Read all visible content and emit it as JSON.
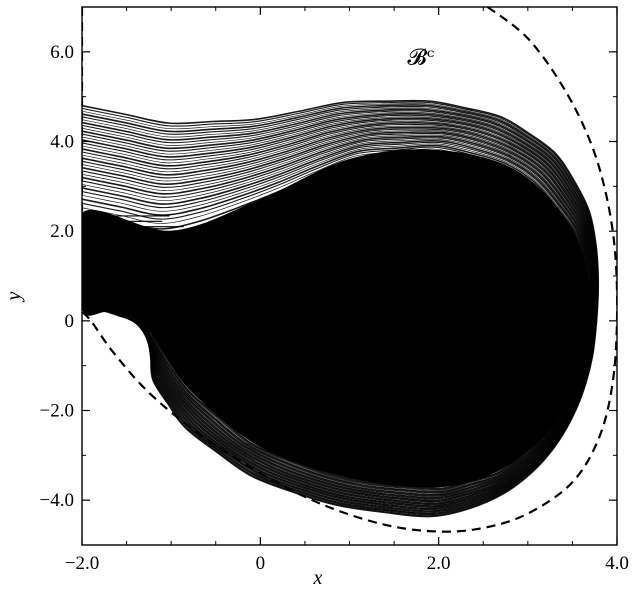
{
  "chart_data": {
    "type": "scatter",
    "title": "",
    "xlabel": "x",
    "ylabel": "y",
    "xlim": [
      -2.0,
      4.0
    ],
    "ylim": [
      -5.0,
      7.0
    ],
    "x_ticks": [
      -2.0,
      0,
      2.0,
      4.0
    ],
    "x_tick_labels": [
      "−2.0",
      "0",
      "2.0",
      "4.0"
    ],
    "y_ticks": [
      -4.0,
      -2.0,
      0,
      2.0,
      4.0,
      6.0
    ],
    "y_tick_labels": [
      "−4.0",
      "−2.0",
      "0",
      "2.0",
      "4.0",
      "6.0"
    ],
    "minor_ticks": true,
    "grid": false,
    "annotations": [
      {
        "text": "𝓑ᶜ",
        "x": 1.8,
        "y": 5.9
      }
    ],
    "series": [
      {
        "style": "dense point cloud (orbit)",
        "color": "#000000",
        "core_outline": [
          [
            -2.0,
            2.4
          ],
          [
            -1.0,
            2.0
          ],
          [
            0.0,
            2.7
          ],
          [
            1.0,
            3.6
          ],
          [
            2.0,
            3.8
          ],
          [
            2.9,
            3.3
          ],
          [
            3.5,
            2.0
          ],
          [
            3.7,
            0.5
          ],
          [
            3.6,
            -1.0
          ],
          [
            3.3,
            -2.3
          ],
          [
            2.7,
            -3.3
          ],
          [
            2.0,
            -3.7
          ],
          [
            1.0,
            -3.5
          ],
          [
            0.0,
            -2.8
          ],
          [
            -0.8,
            -1.5
          ],
          [
            -1.3,
            -0.1
          ],
          [
            -1.7,
            0.2
          ],
          [
            -2.0,
            0.3
          ]
        ],
        "upper_band_outline": [
          [
            -2.0,
            4.8
          ],
          [
            -1.0,
            4.4
          ],
          [
            0.0,
            4.5
          ],
          [
            1.0,
            4.9
          ],
          [
            2.0,
            4.9
          ],
          [
            2.8,
            4.5
          ],
          [
            3.4,
            3.6
          ],
          [
            3.75,
            2.2
          ],
          [
            3.8,
            0.5
          ],
          [
            3.7,
            -1.2
          ],
          [
            3.4,
            -2.6
          ],
          [
            2.9,
            -3.7
          ],
          [
            2.1,
            -4.4
          ],
          [
            1.0,
            -4.2
          ],
          [
            0.0,
            -3.6
          ],
          [
            -0.8,
            -2.5
          ],
          [
            -1.2,
            -1.4
          ],
          [
            -1.25,
            -0.4
          ],
          [
            -1.2,
            0.3
          ],
          [
            -1.4,
            0.2
          ]
        ]
      },
      {
        "style": "dashed line (boundary)",
        "color": "#000000",
        "points": [
          [
            2.55,
            7.0
          ],
          [
            3.0,
            6.3
          ],
          [
            3.4,
            5.2
          ],
          [
            3.7,
            4.0
          ],
          [
            3.88,
            2.8
          ],
          [
            3.98,
            1.5
          ],
          [
            4.0,
            0.0
          ],
          [
            3.95,
            -1.4
          ],
          [
            3.8,
            -2.6
          ],
          [
            3.5,
            -3.6
          ],
          [
            3.0,
            -4.3
          ],
          [
            2.5,
            -4.62
          ],
          [
            2.0,
            -4.7
          ],
          [
            1.4,
            -4.55
          ],
          [
            0.7,
            -4.1
          ],
          [
            0.0,
            -3.4
          ],
          [
            -0.7,
            -2.5
          ],
          [
            -1.25,
            -1.6
          ],
          [
            -1.65,
            -0.7
          ],
          [
            -1.9,
            0.0
          ],
          [
            -2.0,
            0.2
          ]
        ]
      },
      {
        "style": "dashed line (left boundary)",
        "color": "#000000",
        "points": [
          [
            -2.0,
            7.0
          ],
          [
            -2.0,
            2.4
          ]
        ]
      }
    ]
  }
}
